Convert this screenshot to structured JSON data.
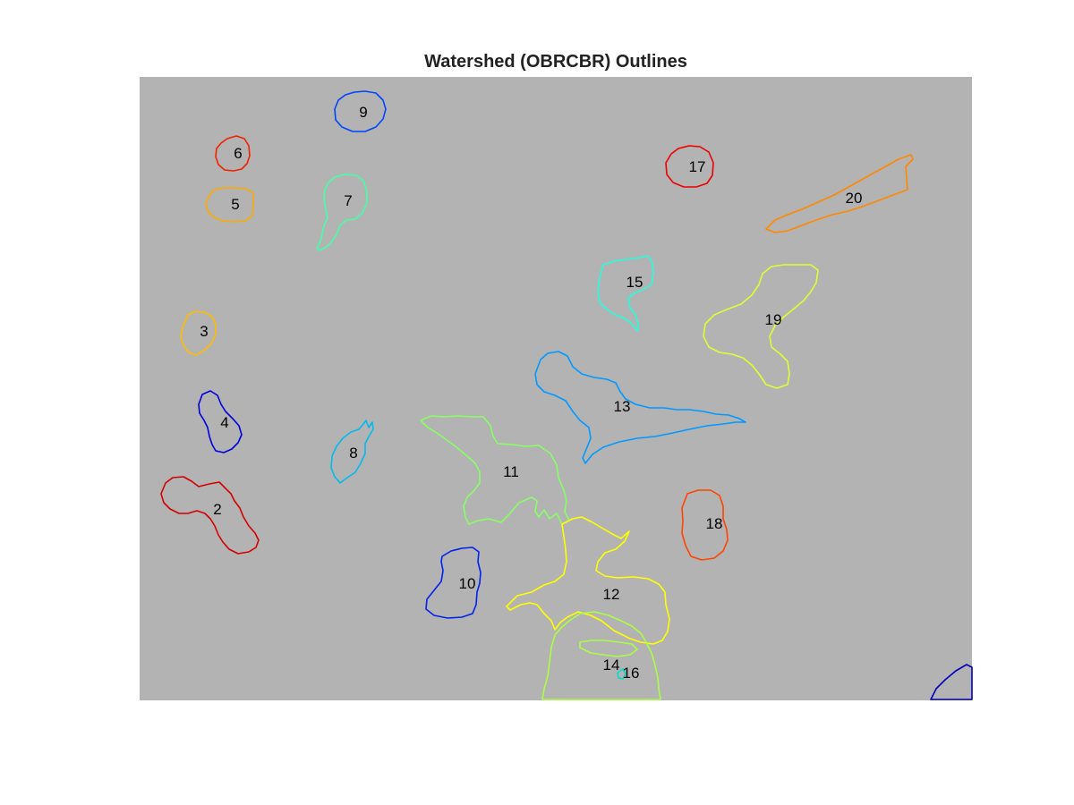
{
  "figure": {
    "title": "Watershed (OBRCBR) Outlines",
    "background_color": "#b3b3b3"
  },
  "regions": [
    {
      "label": "2",
      "color": "#d40000"
    },
    {
      "label": "3",
      "color": "#ffbb00"
    },
    {
      "label": "4",
      "color": "#0000dd"
    },
    {
      "label": "5",
      "color": "#ffaa00"
    },
    {
      "label": "6",
      "color": "#ee2200"
    },
    {
      "label": "7",
      "color": "#44ffaa"
    },
    {
      "label": "8",
      "color": "#00bbee"
    },
    {
      "label": "9",
      "color": "#0044ff"
    },
    {
      "label": "10",
      "color": "#0022ee"
    },
    {
      "label": "11",
      "color": "#88ff66"
    },
    {
      "label": "12",
      "color": "#ffff00"
    },
    {
      "label": "13",
      "color": "#0099ff"
    },
    {
      "label": "14",
      "color": "#aaff44"
    },
    {
      "label": "15",
      "color": "#22ffdd"
    },
    {
      "label": "16",
      "color": "#00ddcc"
    },
    {
      "label": "17",
      "color": "#ee0000"
    },
    {
      "label": "18",
      "color": "#ff4400"
    },
    {
      "label": "19",
      "color": "#ddff33"
    },
    {
      "label": "20",
      "color": "#ff8800"
    },
    {
      "label": "",
      "color": "#0000bb"
    }
  ]
}
